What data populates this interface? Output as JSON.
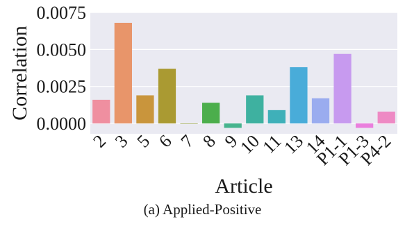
{
  "chart_data": {
    "type": "bar",
    "xlabel": "Article",
    "ylabel": "Correlation",
    "caption": "(a) Applied-Positive",
    "categories": [
      "2",
      "3",
      "5",
      "6",
      "7",
      "8",
      "9",
      "10",
      "11",
      "13",
      "14",
      "P1-1",
      "P1-3",
      "P4-2"
    ],
    "values": [
      0.0016,
      0.0068,
      0.0019,
      0.0037,
      0.0,
      0.0014,
      -0.0003,
      0.0019,
      0.0009,
      0.0038,
      0.0017,
      0.0047,
      -0.0003,
      0.0008
    ],
    "colors": [
      "#ef8fa0",
      "#e8956a",
      "#c9953c",
      "#aa9a32",
      "#8f9d33",
      "#4cae4c",
      "#46b48e",
      "#3eb1a0",
      "#3fb0b9",
      "#49acd9",
      "#9aacef",
      "#c79aef",
      "#ea7fdd",
      "#ee8ac4"
    ],
    "yticks": [
      0.0,
      0.0025,
      0.005,
      0.0075
    ],
    "ytick_labels": [
      "0.0000",
      "0.0025",
      "0.0050",
      "0.0075"
    ],
    "ylim": [
      -0.0007,
      0.0075
    ],
    "grid": true,
    "background": "#eaeaf2"
  }
}
